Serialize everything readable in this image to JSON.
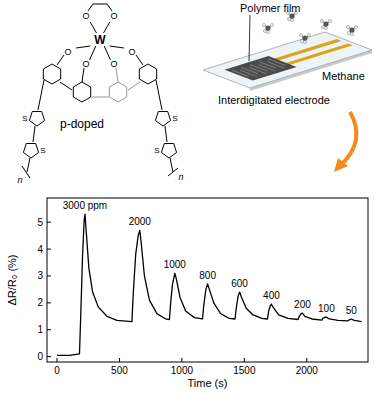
{
  "chart_data": {
    "type": "line",
    "xlabel": "Time (s)",
    "ylabel": "ΔR/R₀ (%)",
    "xlim": [
      -80,
      2490
    ],
    "ylim": [
      -0.2,
      5.9
    ],
    "xticks": [
      0,
      500,
      1000,
      1500,
      2000
    ],
    "yticks": [
      0,
      1,
      2,
      3,
      4,
      5
    ],
    "color": "#000000",
    "grid": false,
    "x": [
      0,
      100,
      180,
      190,
      205,
      218,
      224,
      235,
      255,
      285,
      330,
      400,
      480,
      600,
      610,
      630,
      650,
      663,
      675,
      700,
      740,
      800,
      870,
      900,
      910,
      925,
      943,
      955,
      985,
      1030,
      1100,
      1165,
      1175,
      1192,
      1206,
      1220,
      1255,
      1310,
      1380,
      1425,
      1435,
      1450,
      1462,
      1478,
      1515,
      1570,
      1640,
      1685,
      1695,
      1708,
      1717,
      1735,
      1775,
      1850,
      1930,
      1940,
      1955,
      1965,
      1985,
      2040,
      2120,
      2130,
      2150,
      2157,
      2180,
      2250,
      2330,
      2340,
      2356,
      2380,
      2440
    ],
    "values": [
      0.05,
      0.05,
      0.1,
      1.5,
      3.8,
      5.1,
      5.3,
      4.6,
      3.3,
      2.4,
      1.85,
      1.5,
      1.35,
      1.3,
      2.3,
      3.8,
      4.5,
      4.7,
      4.2,
      3.0,
      2.1,
      1.6,
      1.4,
      1.38,
      2.0,
      2.7,
      3.1,
      2.9,
      2.2,
      1.7,
      1.45,
      1.4,
      1.9,
      2.5,
      2.7,
      2.5,
      2.0,
      1.6,
      1.42,
      1.4,
      1.8,
      2.25,
      2.4,
      2.2,
      1.8,
      1.55,
      1.42,
      1.4,
      1.7,
      1.9,
      1.95,
      1.8,
      1.55,
      1.42,
      1.38,
      1.5,
      1.6,
      1.62,
      1.5,
      1.4,
      1.36,
      1.43,
      1.47,
      1.47,
      1.4,
      1.35,
      1.33,
      1.37,
      1.4,
      1.35,
      1.3
    ],
    "annotations": [
      {
        "text": "3000 ppm",
        "x": 224,
        "y": 5.3
      },
      {
        "text": "2000",
        "x": 663,
        "y": 4.7
      },
      {
        "text": "1000",
        "x": 943,
        "y": 3.1
      },
      {
        "text": "800",
        "x": 1206,
        "y": 2.7
      },
      {
        "text": "600",
        "x": 1462,
        "y": 2.4
      },
      {
        "text": "400",
        "x": 1717,
        "y": 1.95
      },
      {
        "text": "200",
        "x": 1965,
        "y": 1.62
      },
      {
        "text": "100",
        "x": 2157,
        "y": 1.47
      },
      {
        "text": "50",
        "x": 2356,
        "y": 1.4
      }
    ]
  },
  "diagram": {
    "structure": {
      "metal": "W",
      "oxygen": "O",
      "sulfur": "S",
      "repeat": "n",
      "label": "p-doped"
    },
    "device": {
      "film": "Polymer film",
      "gas": "Methane",
      "electrode": "Interdigitated electrode"
    }
  }
}
